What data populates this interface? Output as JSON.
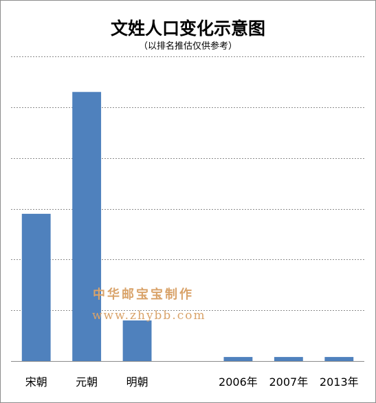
{
  "chart_data": {
    "type": "bar",
    "title": "文姓人口变化示意图",
    "subtitle": "（以排名推估仅供参考）",
    "categories": [
      "宋朝",
      "元朝",
      "明朝",
      "",
      "2006年",
      "2007年",
      "2013年"
    ],
    "values": [
      29,
      53,
      8,
      null,
      0.8,
      0.8,
      0.8
    ],
    "ylim": [
      0,
      60
    ],
    "grid": true,
    "xlabel": "",
    "ylabel": "",
    "color": "#4f81bd"
  },
  "watermark": {
    "text": "中华邮宝宝制作",
    "url": "www.zhybb.com"
  }
}
